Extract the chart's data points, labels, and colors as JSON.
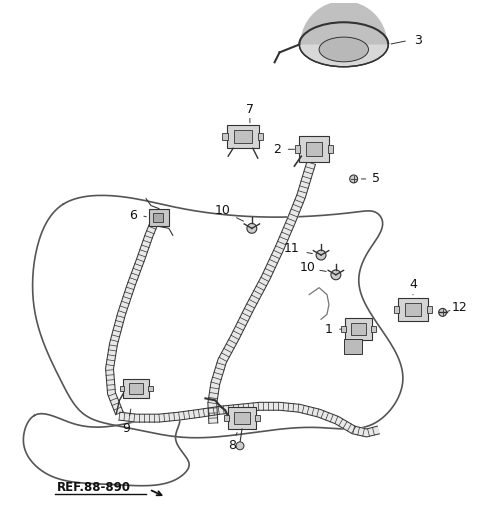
{
  "bg_color": "#ffffff",
  "line_color": "#333333",
  "text_color": "#111111",
  "ref_label": "REF.88-890",
  "fig_w": 4.8,
  "fig_h": 5.18,
  "dpi": 100
}
